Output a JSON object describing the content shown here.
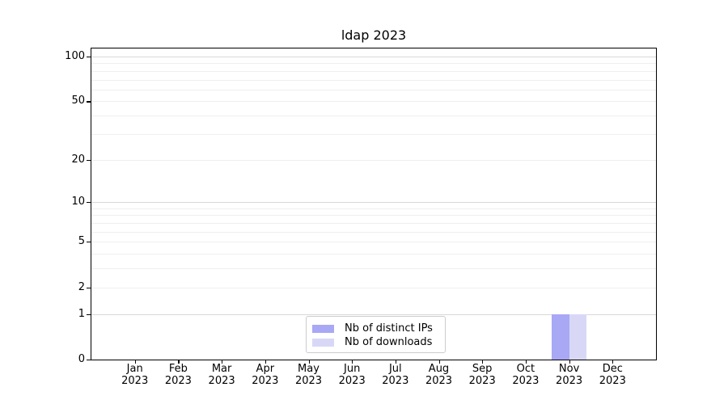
{
  "chart_data": {
    "type": "bar",
    "title": "ldap 2023",
    "categories": [
      "Jan\n2023",
      "Feb\n2023",
      "Mar\n2023",
      "Apr\n2023",
      "May\n2023",
      "Jun\n2023",
      "Jul\n2023",
      "Aug\n2023",
      "Sep\n2023",
      "Oct\n2023",
      "Nov\n2023",
      "Dec\n2023"
    ],
    "series": [
      {
        "name": "Nb of distinct IPs",
        "color": "#a8a8f5",
        "values": [
          0,
          0,
          0,
          0,
          0,
          0,
          0,
          0,
          0,
          0,
          1,
          0
        ]
      },
      {
        "name": "Nb of downloads",
        "color": "#d8d8f6",
        "values": [
          0,
          0,
          0,
          0,
          0,
          0,
          0,
          0,
          0,
          0,
          1,
          0
        ]
      }
    ],
    "xlabel": "",
    "ylabel": "",
    "yscale": "log1p",
    "ylim": [
      0,
      113
    ],
    "ytick_labels": [
      0,
      1,
      2,
      5,
      10,
      20,
      50,
      100
    ],
    "major_gridlines": [
      1,
      10,
      100
    ],
    "minor_gridlines": [
      2,
      3,
      4,
      5,
      6,
      7,
      8,
      9,
      20,
      30,
      40,
      50,
      60,
      70,
      80,
      90
    ],
    "grid": true,
    "legend_position": "lower-center-inside",
    "colors": {
      "major_grid": "#d8d8d8",
      "minor_grid": "#efefef",
      "spine": "#000000",
      "text": "#000000",
      "legend_border": "#cccccc"
    }
  }
}
